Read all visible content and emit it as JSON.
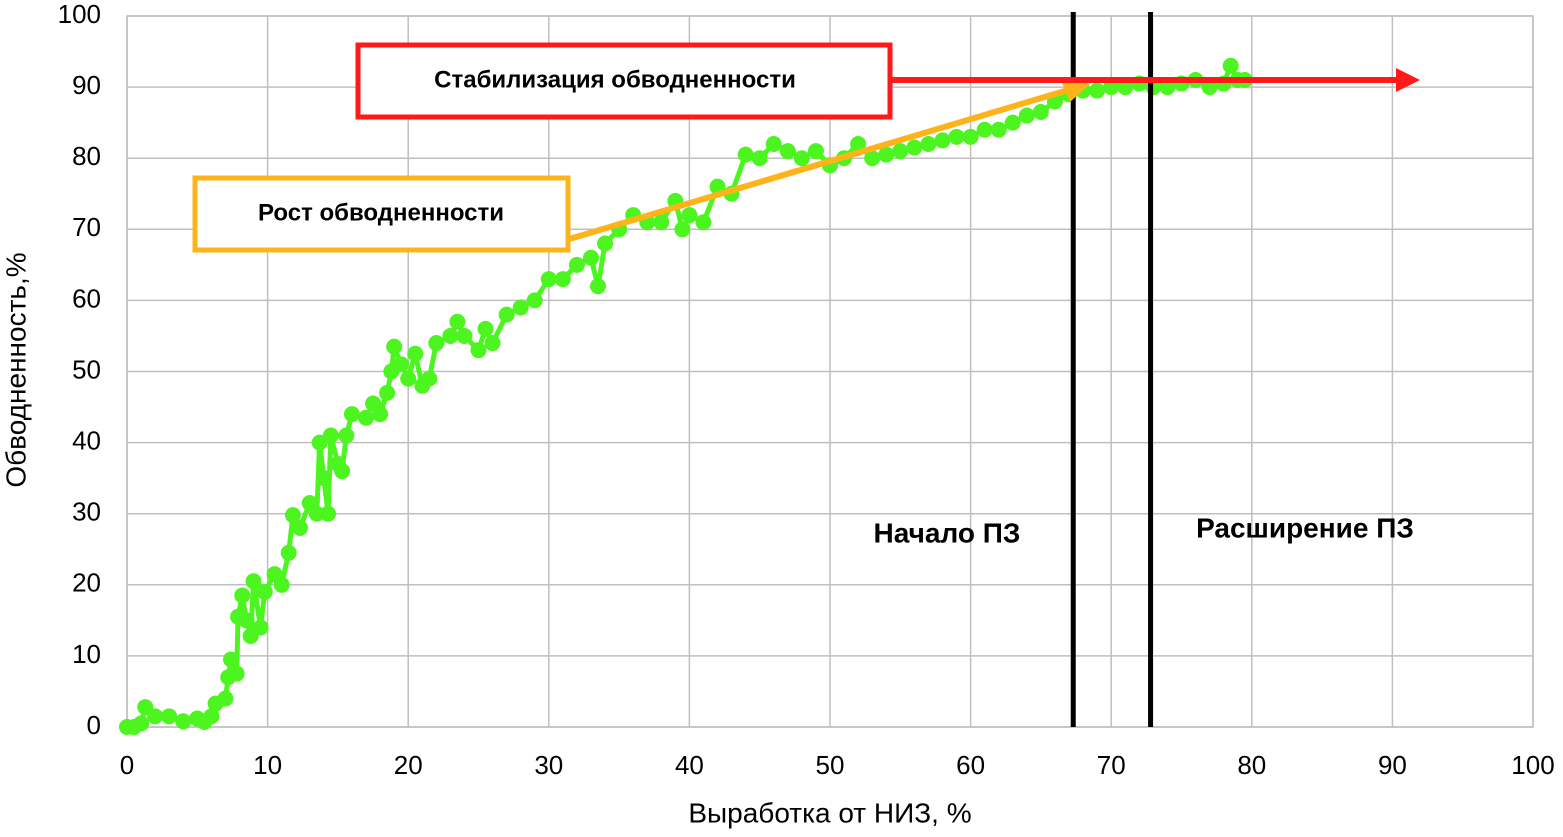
{
  "chart_data": {
    "type": "line",
    "xlabel": "Выработка от НИЗ, %",
    "ylabel": "Обводненность,%",
    "color": "#4cf51f",
    "x": [
      0,
      0.5,
      1,
      1.3,
      2,
      3,
      4,
      5,
      5.5,
      6,
      6.3,
      7,
      7.2,
      7.4,
      7.8,
      7.9,
      8.2,
      8.5,
      8.8,
      9,
      9.5,
      9.8,
      10.5,
      11,
      11.5,
      11.8,
      12.3,
      13,
      13.5,
      13.7,
      14,
      14.3,
      14.5,
      15,
      15.3,
      15.6,
      16,
      17,
      17.5,
      18,
      18.5,
      18.8,
      19,
      19.5,
      20,
      20.5,
      21,
      21.5,
      22,
      23,
      23.5,
      24,
      25,
      25.5,
      26,
      27,
      28,
      29,
      30,
      31,
      32,
      33,
      33.5,
      34,
      35,
      36,
      37,
      38,
      39,
      39.5,
      40,
      41,
      42,
      43,
      44,
      45,
      46,
      47,
      48,
      49,
      50,
      51,
      52,
      53,
      54,
      55,
      56,
      57,
      58,
      59,
      60,
      61,
      62,
      63,
      64,
      65,
      66,
      67,
      68,
      69,
      70,
      71,
      72,
      73,
      74,
      75,
      76,
      77,
      78,
      78.5,
      79,
      79.5
    ],
    "values": [
      0,
      0,
      0.5,
      2.8,
      1.5,
      1.5,
      0.8,
      1.2,
      0.7,
      1.5,
      3.3,
      4,
      7,
      9.5,
      7.5,
      15.5,
      18.5,
      15,
      12.8,
      20.5,
      14,
      19,
      21.5,
      20,
      24.5,
      29.8,
      28,
      31.5,
      30,
      40,
      35,
      30,
      41,
      37,
      36,
      41,
      44,
      43.5,
      45.5,
      44,
      47,
      50,
      53.5,
      51,
      49,
      52.5,
      48,
      49,
      54,
      55,
      57,
      55,
      53,
      56,
      54,
      58,
      59,
      60,
      63,
      63,
      65,
      66,
      62,
      68,
      70,
      72,
      71,
      71,
      74,
      70,
      72,
      71,
      76,
      75,
      80.5,
      80,
      82,
      81,
      80,
      81,
      79,
      80,
      82,
      80,
      80.5,
      81,
      81.5,
      82,
      82.5,
      83,
      83,
      84,
      84,
      85,
      86,
      86.5,
      88,
      89,
      89.5,
      89.5,
      90,
      90,
      90.5,
      90,
      90,
      90.5,
      91,
      90,
      90.5,
      93,
      91,
      91
    ],
    "xlim": [
      0,
      100
    ],
    "xticks": [
      0,
      10,
      20,
      30,
      40,
      50,
      60,
      70,
      80,
      90,
      100
    ],
    "ylim": [
      0,
      100
    ],
    "yticks": [
      0,
      10,
      20,
      30,
      40,
      50,
      60,
      70,
      80,
      90,
      100
    ],
    "grid": true,
    "annotations": [
      {
        "text": "Стабилизация обводненности",
        "color": "#ff1a1a"
      },
      {
        "text": "Рост обводненности",
        "color": "#ffb31a"
      }
    ],
    "vlines": [
      {
        "x": 67.3,
        "text": "Начало ПЗ"
      },
      {
        "x": 72.8,
        "text": "Расширение ПЗ"
      }
    ]
  }
}
